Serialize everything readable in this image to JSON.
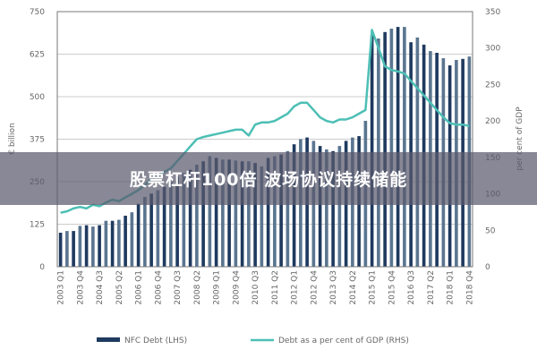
{
  "chart_data": {
    "type": "bar+line",
    "title": "",
    "ylabel_left": "€ billion",
    "ylabel_right": "per cent of GDP",
    "ylim_left": [
      0,
      750
    ],
    "ylim_right": [
      0,
      350
    ],
    "yticks_left": [
      0,
      125,
      250,
      375,
      500,
      625,
      750
    ],
    "yticks_right": [
      0,
      50,
      100,
      150,
      200,
      250,
      300,
      350
    ],
    "grid": true,
    "legend_position": "bottom",
    "quarters": [
      "2003 Q1",
      "2003 Q2",
      "2003 Q3",
      "2003 Q4",
      "2004 Q1",
      "2004 Q2",
      "2004 Q3",
      "2004 Q4",
      "2005 Q1",
      "2005 Q2",
      "2005 Q3",
      "2005 Q4",
      "2006 Q1",
      "2006 Q2",
      "2006 Q3",
      "2006 Q4",
      "2007 Q1",
      "2007 Q2",
      "2007 Q3",
      "2007 Q4",
      "2008 Q1",
      "2008 Q2",
      "2008 Q3",
      "2008 Q4",
      "2009 Q1",
      "2009 Q2",
      "2009 Q3",
      "2009 Q4",
      "2010 Q1",
      "2010 Q2",
      "2010 Q3",
      "2010 Q4",
      "2011 Q1",
      "2011 Q2",
      "2011 Q3",
      "2011 Q4",
      "2012 Q1",
      "2012 Q2",
      "2012 Q3",
      "2012 Q4",
      "2013 Q1",
      "2013 Q2",
      "2013 Q3",
      "2013 Q4",
      "2014 Q1",
      "2014 Q2",
      "2014 Q3",
      "2014 Q4",
      "2015 Q1",
      "2015 Q2",
      "2015 Q3",
      "2015 Q4",
      "2016 Q1",
      "2016 Q2",
      "2016 Q3",
      "2016 Q4",
      "2017 Q1",
      "2017 Q2",
      "2017 Q3",
      "2017 Q4",
      "2018 Q1",
      "2018 Q2",
      "2018 Q3",
      "2018 Q4"
    ],
    "xtick_labels": [
      "2003 Q1",
      "2003 Q4",
      "2004 Q3",
      "2005 Q2",
      "2006 Q1",
      "2006 Q4",
      "2007 Q3",
      "2008 Q2",
      "2009 Q1",
      "2009 Q4",
      "2010 Q3",
      "2011 Q2",
      "2012 Q1",
      "2012 Q4",
      "2013 Q3",
      "2014 Q2",
      "2015 Q1",
      "2015 Q4",
      "2016 Q3",
      "2017 Q2",
      "2018 Q1",
      "2018 Q4"
    ],
    "series": [
      {
        "name": "NFC Debt (LHS)",
        "type": "bar",
        "axis": "left",
        "color": "#1f3a5f",
        "values": [
          100,
          105,
          105,
          120,
          122,
          118,
          122,
          135,
          135,
          138,
          150,
          160,
          185,
          205,
          215,
          225,
          235,
          250,
          265,
          275,
          285,
          300,
          310,
          325,
          320,
          315,
          315,
          312,
          310,
          310,
          305,
          295,
          320,
          325,
          330,
          340,
          360,
          375,
          380,
          370,
          355,
          345,
          340,
          355,
          370,
          380,
          384,
          429,
          680,
          671,
          690,
          700,
          705,
          705,
          660,
          674,
          653,
          634,
          629,
          613,
          592,
          608,
          611,
          618
        ]
      },
      {
        "name": "Debt as a per cent of GDP (RHS)",
        "type": "line",
        "axis": "right",
        "color": "#4dbfb5",
        "values": [
          74,
          76,
          80,
          82,
          80,
          85,
          83,
          88,
          92,
          90,
          95,
          100,
          105,
          112,
          120,
          125,
          130,
          135,
          145,
          155,
          165,
          175,
          178,
          180,
          182,
          184,
          186,
          188,
          188,
          180,
          195,
          198,
          198,
          200,
          205,
          210,
          220,
          225,
          225,
          215,
          205,
          200,
          198,
          202,
          202,
          205,
          210,
          215,
          325,
          300,
          275,
          270,
          268,
          265,
          255,
          245,
          235,
          225,
          215,
          205,
          197,
          195,
          195,
          193
        ]
      }
    ]
  },
  "banner": {
    "text": "股票杠杆100倍 波场协议持续储能"
  }
}
